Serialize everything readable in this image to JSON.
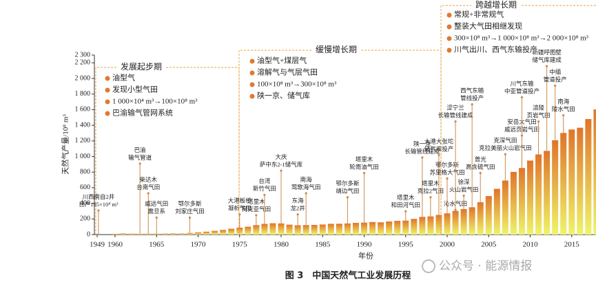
{
  "chart_data": {
    "type": "bar",
    "caption": "图 3　中国天然气工业发展历程",
    "watermark": "公众号 · 能源情报",
    "x_label": "年份",
    "y_label": "天然气产量/10⁸ m³",
    "x": [
      1949,
      1960,
      1961,
      1962,
      1963,
      1964,
      1965,
      1966,
      1967,
      1968,
      1969,
      1970,
      1971,
      1972,
      1973,
      1974,
      1975,
      1976,
      1977,
      1978,
      1979,
      1980,
      1981,
      1982,
      1983,
      1984,
      1985,
      1986,
      1987,
      1988,
      1989,
      1990,
      1991,
      1992,
      1993,
      1994,
      1995,
      1996,
      1997,
      1998,
      1999,
      2000,
      2001,
      2002,
      2003,
      2004,
      2005,
      2006,
      2007,
      2008,
      2009,
      2010,
      2011,
      2012,
      2013,
      2014,
      2015,
      2016,
      2017,
      2018
    ],
    "values": [
      0.1,
      10,
      15,
      12,
      10,
      11,
      11,
      13,
      15,
      14,
      20,
      29,
      37,
      48,
      60,
      75,
      89,
      101,
      121,
      137,
      145,
      143,
      127,
      119,
      122,
      124,
      129,
      138,
      139,
      143,
      150,
      153,
      161,
      157,
      168,
      176,
      179,
      201,
      227,
      233,
      252,
      272,
      303,
      327,
      350,
      415,
      493,
      586,
      692,
      803,
      853,
      948,
      1027,
      1072,
      1209,
      1302,
      1346,
      1369,
      1480,
      1603
    ],
    "gradient": [
      "#e0752a",
      "#eef46a"
    ],
    "xlim": [
      1949,
      2019
    ],
    "xticks": [
      1949,
      1960,
      1965,
      1970,
      1975,
      1980,
      1985,
      1990,
      1995,
      2000,
      2005,
      2010,
      2015
    ],
    "ylim": [
      0,
      2300
    ],
    "yticks": [
      0,
      200,
      400,
      600,
      800,
      {
        "value": 1000,
        "label": "1 000"
      },
      {
        "value": 1200,
        "label": "1 200"
      },
      {
        "value": 1400,
        "label": "1 400"
      },
      {
        "value": 1600,
        "label": "1 600"
      },
      {
        "value": 1800,
        "label": "1 800"
      },
      {
        "value": 2000,
        "label": "2 000"
      },
      {
        "value": 2200,
        "label": "2 200"
      },
      {
        "value": 2300,
        "label": "2 300"
      }
    ],
    "stages": [
      {
        "title": "发展起步期",
        "items": [
          "油型气",
          "发现小型气田",
          "1 000×10⁴ m³→100×10⁸ m³",
          "巴渝输气管网系统"
        ]
      },
      {
        "title": "缓慢增长期",
        "items": [
          "油型气+煤层气",
          "溶解气与气层气田",
          "100×10⁸ m³→300×10⁸ m³",
          "陕一京、储气库"
        ]
      },
      {
        "title": "跨越增长期",
        "items": [
          "常规+非常规气",
          "整装大气田相继发现",
          "300×10⁸ m³→1 000×10⁸ m³→2 000×10⁸ m³",
          "川气出川、西气东输投产"
        ]
      }
    ],
    "annotations": [
      {
        "x": 1958,
        "y": 520,
        "lines": [
          "川西南自2井",
          "日产195×10⁴ m³"
        ]
      },
      {
        "x": 1963,
        "y": 1120,
        "lines": [
          "巴渝",
          "输气管道"
        ]
      },
      {
        "x": 1964,
        "y": 740,
        "lines": [
          "柴达木",
          "台南气田"
        ]
      },
      {
        "x": 1965,
        "y": 430,
        "lines": [
          "威远气田",
          "震旦系"
        ]
      },
      {
        "x": 1969,
        "y": 430,
        "lines": [
          "鄂尔多斯",
          "刘家庄气田"
        ]
      },
      {
        "x": 1975,
        "y": 470,
        "lines": [
          "大港板桥",
          "凝析气田"
        ]
      },
      {
        "x": 1977,
        "y": 460,
        "lines": [
          "塔里木",
          "柯克亚气田"
        ]
      },
      {
        "x": 1978,
        "y": 720,
        "lines": [
          "台湾",
          "新竹气田"
        ]
      },
      {
        "x": 1980,
        "y": 1030,
        "lines": [
          "大庆",
          "萨中东2-1储气库"
        ]
      },
      {
        "x": 1982,
        "y": 470,
        "lines": [
          "东海",
          "龙2井"
        ]
      },
      {
        "x": 1983,
        "y": 740,
        "lines": [
          "南海",
          "莺歌海气田"
        ]
      },
      {
        "x": 1988,
        "y": 690,
        "lines": [
          "鄂尔多斯",
          "靖边气田"
        ]
      },
      {
        "x": 1990,
        "y": 1000,
        "lines": [
          "塔里木",
          "轮南油气田"
        ]
      },
      {
        "x": 1995,
        "y": 510,
        "lines": [
          "塔里木",
          "和田河气田"
        ]
      },
      {
        "x": 1997,
        "y": 1200,
        "lines": [
          "陕一京",
          "长输管线建成"
        ]
      },
      {
        "x": 1998,
        "y": 690,
        "lines": [
          "塔里木",
          "克拉2气田"
        ]
      },
      {
        "x": 1999,
        "y": 1230,
        "lines": [
          "大港大张坨",
          "储气库投产"
        ]
      },
      {
        "x": 2000,
        "y": 930,
        "lines": [
          "鄂尔多斯",
          "苏里格大气田"
        ]
      },
      {
        "x": 2001,
        "y": 1660,
        "lines": [
          "涩宁兰",
          "长输管线建成"
        ]
      },
      {
        "x": 2001,
        "y": 430,
        "lines": [
          "沁水气田"
        ]
      },
      {
        "x": 2002,
        "y": 710,
        "lines": [
          "徐深",
          "火山岩气田"
        ]
      },
      {
        "x": 2003,
        "y": 1880,
        "lines": [
          "西气东输",
          "管线投产"
        ]
      },
      {
        "x": 2004,
        "y": 1000,
        "lines": [
          "普光",
          "高含硫气田"
        ]
      },
      {
        "x": 2007,
        "y": 1240,
        "lines": [
          "克深气田",
          "克拉美丽火山岩气田"
        ]
      },
      {
        "x": 2009,
        "y": 1480,
        "lines": [
          "安岳大气田",
          "威远页岩气田"
        ]
      },
      {
        "x": 2009,
        "y": 1970,
        "lines": [
          "川气东输",
          "中亚管道投产"
        ]
      },
      {
        "x": 2011,
        "y": 1660,
        "lines": [
          "涪陵",
          "页岩气田"
        ]
      },
      {
        "x": 2012,
        "y": 2370,
        "lines": [
          "新疆呼图壁",
          "储气库建成"
        ]
      },
      {
        "x": 2013,
        "y": 2120,
        "lines": [
          "中缅",
          "管道投产"
        ]
      },
      {
        "x": 2014,
        "y": 1740,
        "lines": [
          "南海",
          "陵水气田"
        ]
      }
    ]
  }
}
